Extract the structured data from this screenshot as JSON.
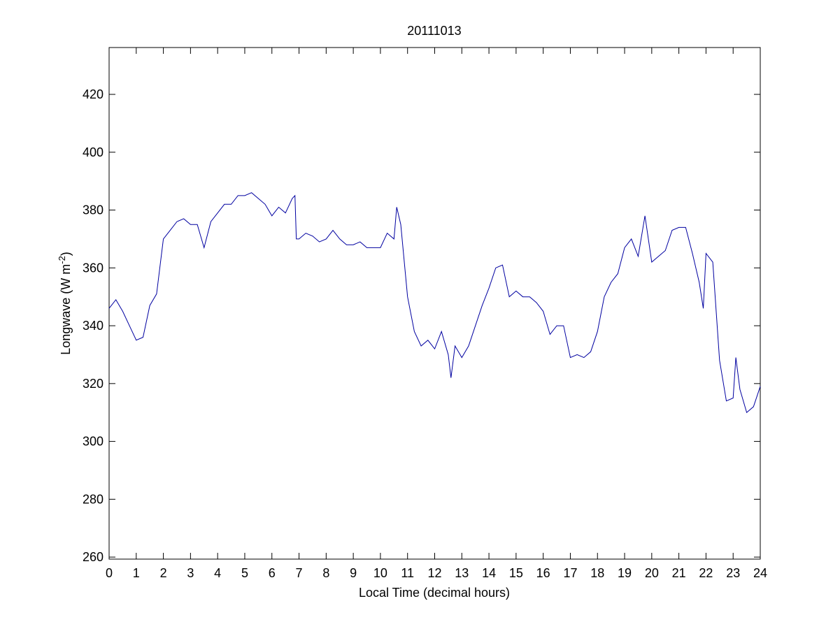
{
  "chart_data": {
    "type": "line",
    "title": "20111013",
    "x_label": "Local Time (decimal hours)",
    "y_label": [
      "Longwave (W m",
      "-2",
      ")"
    ],
    "xlim": [
      0,
      24
    ],
    "xticks": [
      0,
      1,
      2,
      3,
      4,
      5,
      6,
      7,
      8,
      9,
      10,
      11,
      12,
      13,
      14,
      15,
      16,
      17,
      18,
      19,
      20,
      21,
      22,
      23,
      24
    ],
    "ylim": [
      259.3,
      436.2
    ],
    "yticks": [
      260,
      280,
      300,
      320,
      340,
      360,
      380,
      400,
      420
    ],
    "grid": false,
    "series": [
      {
        "color": "#0000a0",
        "x": [
          0,
          0.25,
          0.5,
          0.75,
          1,
          1.25,
          1.5,
          1.75,
          2,
          2.25,
          2.5,
          2.75,
          3,
          3.25,
          3.5,
          3.75,
          4,
          4.25,
          4.5,
          4.75,
          5,
          5.25,
          5.5,
          5.75,
          6,
          6.25,
          6.5,
          6.75,
          6.85,
          6.9,
          7,
          7.25,
          7.5,
          7.75,
          8,
          8.25,
          8.5,
          8.75,
          9,
          9.25,
          9.5,
          9.75,
          10,
          10.25,
          10.5,
          10.6,
          10.75,
          11,
          11.25,
          11.5,
          11.75,
          12,
          12.25,
          12.5,
          12.6,
          12.75,
          13,
          13.25,
          13.5,
          13.75,
          14,
          14.25,
          14.5,
          14.75,
          15,
          15.25,
          15.5,
          15.75,
          16,
          16.25,
          16.5,
          16.75,
          17,
          17.25,
          17.5,
          17.75,
          18,
          18.25,
          18.5,
          18.75,
          19,
          19.25,
          19.5,
          19.75,
          20,
          20.25,
          20.5,
          20.75,
          21,
          21.25,
          21.5,
          21.75,
          21.9,
          22,
          22.25,
          22.5,
          22.75,
          23,
          23.1,
          23.25,
          23.5,
          23.75,
          24
        ],
        "values": [
          346,
          349,
          345,
          340,
          335,
          336,
          347,
          351,
          370,
          373,
          376,
          377,
          375,
          375,
          367,
          376,
          379,
          382,
          382,
          385,
          385,
          386,
          384,
          382,
          378,
          381,
          379,
          384,
          385,
          370,
          370,
          372,
          371,
          369,
          370,
          373,
          370,
          368,
          368,
          369,
          367,
          367,
          367,
          372,
          370,
          381,
          375,
          350,
          338,
          333,
          335,
          332,
          338,
          330,
          322,
          333,
          329,
          333,
          340,
          347,
          353,
          360,
          361,
          350,
          352,
          350,
          350,
          348,
          345,
          337,
          340,
          340,
          329,
          330,
          329,
          331,
          338,
          350,
          355,
          358,
          367,
          370,
          364,
          378,
          362,
          364,
          366,
          373,
          374,
          374,
          365,
          355,
          346,
          365,
          362,
          328,
          314,
          315,
          329,
          318,
          310,
          312,
          319
        ]
      }
    ]
  }
}
